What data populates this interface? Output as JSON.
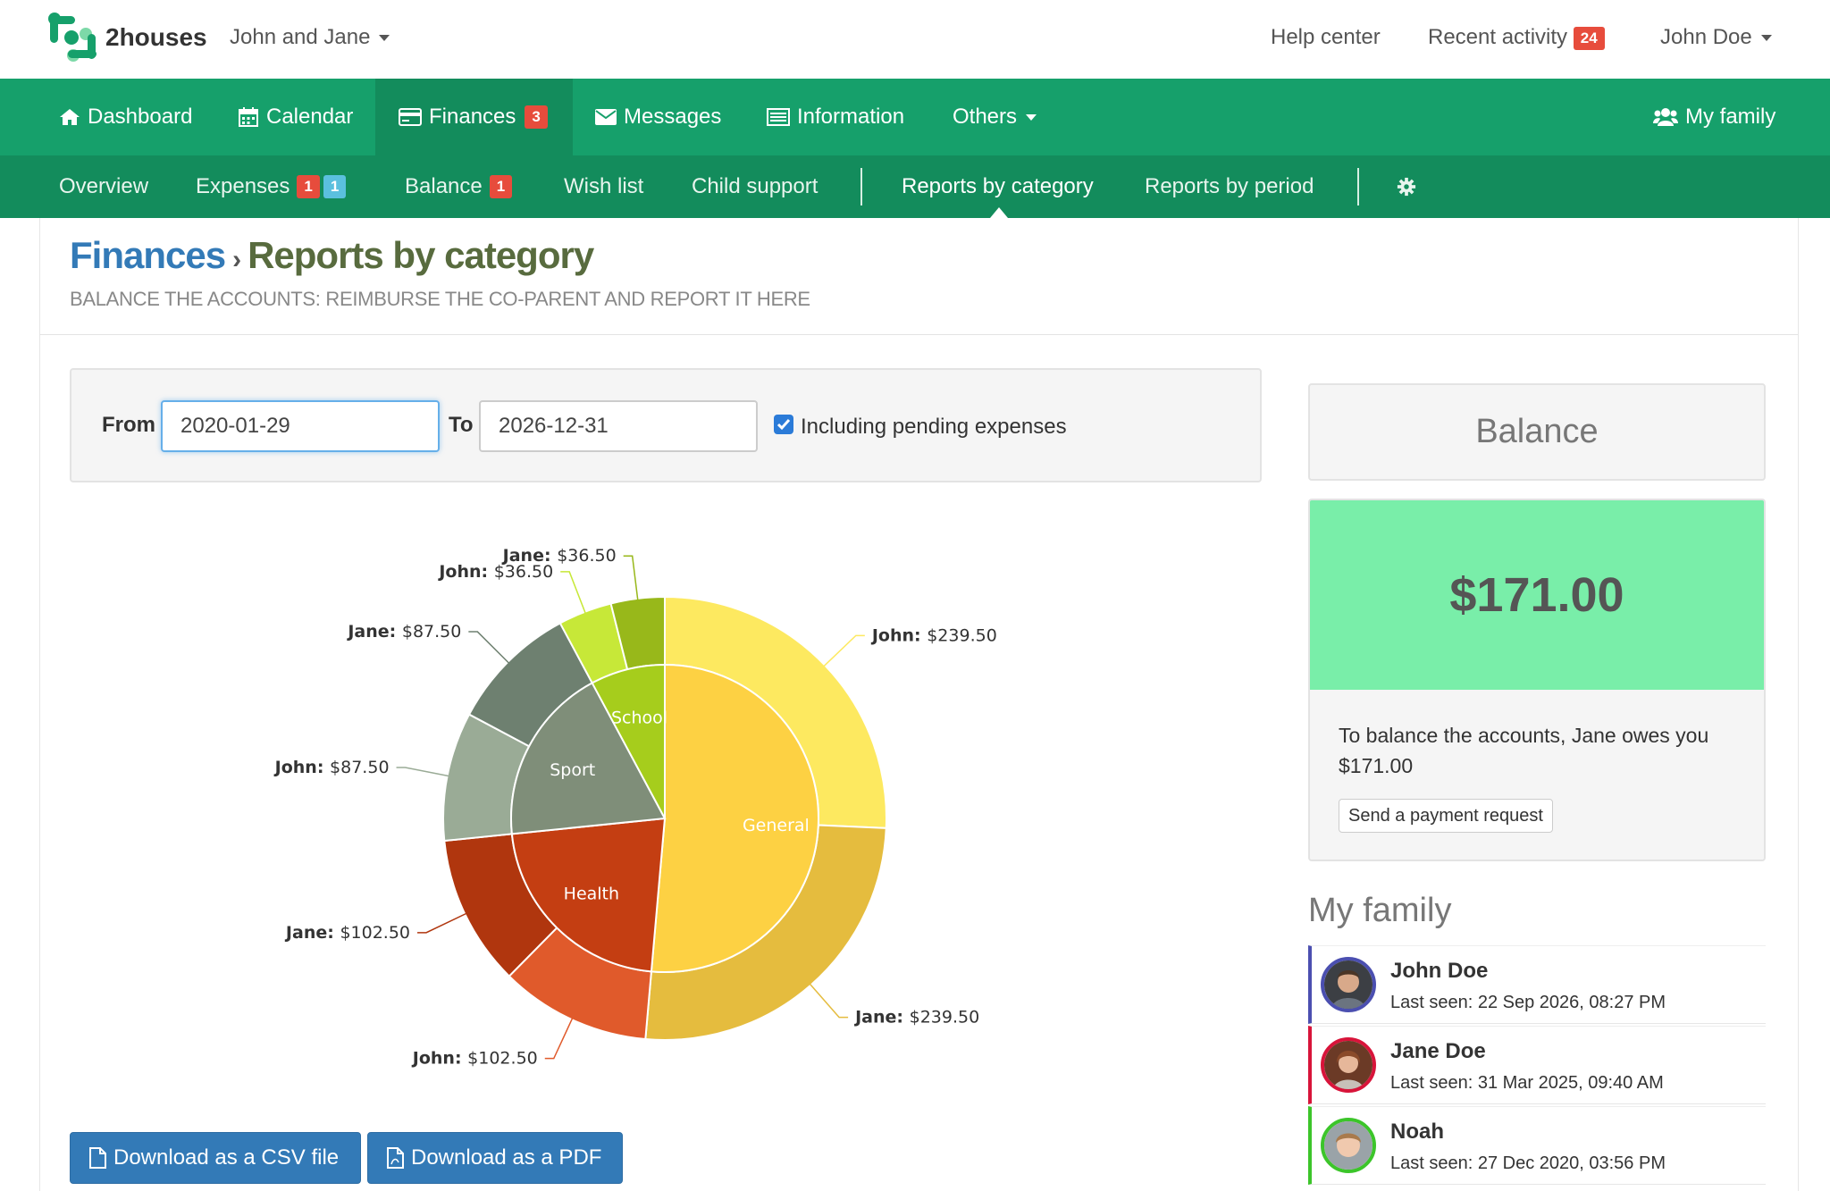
{
  "app": {
    "brand": "2houses",
    "family_selector": "John and Jane"
  },
  "top_right": {
    "help": "Help center",
    "recent": "Recent activity",
    "recent_count": "24",
    "user": "John Doe"
  },
  "main_nav": {
    "dashboard": "Dashboard",
    "calendar": "Calendar",
    "finances": "Finances",
    "finances_count": "3",
    "messages": "Messages",
    "information": "Information",
    "others": "Others",
    "my_family": "My family"
  },
  "sub_nav": {
    "overview": "Overview",
    "expenses": "Expenses",
    "expenses_count_red": "1",
    "expenses_count_blue": "1",
    "balance": "Balance",
    "balance_count": "1",
    "wishlist": "Wish list",
    "child_support": "Child support",
    "reports_category": "Reports by category",
    "reports_period": "Reports by period"
  },
  "page": {
    "breadcrumb": "Finances",
    "separator": "›",
    "title": "Reports by category",
    "subtitle": "BALANCE THE ACCOUNTS: REIMBURSE THE CO-PARENT AND REPORT IT HERE"
  },
  "filter": {
    "from_label": "From",
    "from_value": "2020-01-29",
    "to_label": "To",
    "to_value": "2026-12-31",
    "pending_label": "Including pending expenses",
    "pending_checked": true
  },
  "chart_data": {
    "type": "pie",
    "inner": [
      {
        "label": "General",
        "value": 479.0,
        "color": "#fdd143"
      },
      {
        "label": "Health",
        "value": 205.0,
        "color": "#c43e12"
      },
      {
        "label": "Sport",
        "value": 175.0,
        "color": "#7f8e79"
      },
      {
        "label": "School",
        "value": 73.0,
        "color": "#a6cd1c"
      }
    ],
    "outer": [
      {
        "label": "John: $239.50",
        "value": 239.5,
        "color": "#fde960"
      },
      {
        "label": "Jane: $239.50",
        "value": 239.5,
        "color": "#e5bc3e"
      },
      {
        "label": "John: $102.50",
        "value": 102.5,
        "color": "#e05a2b"
      },
      {
        "label": "Jane: $102.50",
        "value": 102.5,
        "color": "#b0360e"
      },
      {
        "label": "John: $87.50",
        "value": 87.5,
        "color": "#9aab96"
      },
      {
        "label": "Jane: $87.50",
        "value": 87.5,
        "color": "#6e8070"
      },
      {
        "label": "John: $36.50",
        "value": 36.5,
        "color": "#c7e838"
      },
      {
        "label": "Jane: $36.50",
        "value": 36.5,
        "color": "#98b81a"
      }
    ]
  },
  "downloads": {
    "csv": "Download as a CSV file",
    "pdf": "Download as a PDF"
  },
  "balance": {
    "heading": "Balance",
    "amount": "$171.00",
    "text": "To balance the accounts, Jane owes you $171.00",
    "button": "Send a payment request"
  },
  "family": {
    "heading": "My family",
    "members": [
      {
        "name": "John Doe",
        "seen": "Last seen: 22 Sep 2026, 08:27 PM",
        "color": "#4b4fb0"
      },
      {
        "name": "Jane Doe",
        "seen": "Last seen: 31 Mar 2025, 09:40 AM",
        "color": "#d8143a"
      },
      {
        "name": "Noah",
        "seen": "Last seen: 27 Dec 2020, 03:56 PM",
        "color": "#3cc52a"
      }
    ]
  }
}
